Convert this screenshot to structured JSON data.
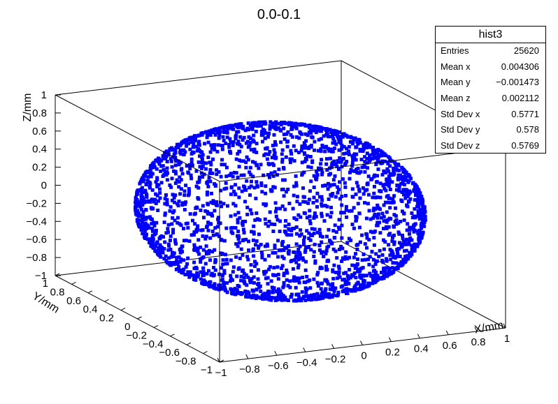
{
  "title": "0.0-0.1",
  "stats": {
    "name": "hist3",
    "rows": [
      {
        "label": "Entries",
        "value": "25620"
      },
      {
        "label": "Mean x",
        "value": "0.004306"
      },
      {
        "label": "Mean y",
        "value": "−0.001473"
      },
      {
        "label": "Mean z",
        "value": "0.002112"
      },
      {
        "label": "Std Dev x",
        "value": "0.5771"
      },
      {
        "label": "Std Dev y",
        "value": "0.578"
      },
      {
        "label": "Std Dev z",
        "value": "0.5769"
      }
    ]
  },
  "chart_data": {
    "type": "scatter",
    "dimensions": 3,
    "title": "0.0-0.1",
    "xlabel": "X/mm",
    "ylabel": "Y/mm",
    "zlabel": "Z/mm",
    "xlim": [
      -1,
      1
    ],
    "ylim": [
      -1,
      1
    ],
    "zlim": [
      -1,
      1
    ],
    "x_ticks": [
      "−1",
      "−0.8",
      "−0.6",
      "−0.4",
      "−0.2",
      "0",
      "0.2",
      "0.4",
      "0.6",
      "0.8",
      "1"
    ],
    "y_ticks": [
      "−1",
      "−0.8",
      "−0.6",
      "−0.4",
      "−0.2",
      "0",
      "0.2",
      "0.4",
      "0.6",
      "0.8",
      "1"
    ],
    "z_ticks": [
      "−1",
      "−0.8",
      "−0.6",
      "−0.4",
      "−0.2",
      "0",
      "0.2",
      "0.4",
      "0.6",
      "0.8",
      "1"
    ],
    "marker_color": "#0000ff",
    "series": [
      {
        "description_points": "points distributed on the surface of the unit sphere",
        "count": 25620
      }
    ],
    "legend": "top-right statistics box"
  }
}
